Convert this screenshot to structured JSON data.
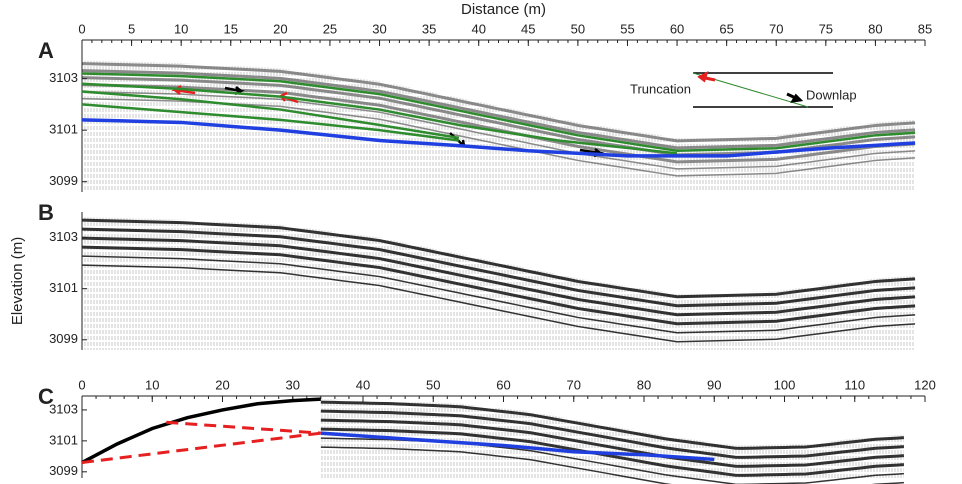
{
  "chart_data": [
    {
      "type": "line",
      "label": "A",
      "xlabel": "Distance (m)",
      "xlim": [
        0,
        85
      ],
      "xticks": [
        0,
        5,
        10,
        15,
        20,
        25,
        30,
        35,
        40,
        45,
        50,
        55,
        60,
        65,
        70,
        75,
        80,
        85
      ],
      "ylim": [
        3098.6,
        3104.5
      ],
      "yticks": [
        3099,
        3101,
        3103
      ],
      "annotations": [
        {
          "text": "Truncation"
        },
        {
          "text": "Downlap"
        }
      ],
      "series": [
        {
          "color": "#2e8b2e",
          "x": [
            0,
            10,
            20,
            30,
            40,
            50,
            60,
            70,
            80,
            84
          ],
          "values": [
            3103.2,
            3103.1,
            3102.9,
            3102.4,
            3101.6,
            3100.8,
            3100.2,
            3100.3,
            3100.8,
            3100.9
          ]
        },
        {
          "color": "#2e8b2e",
          "x": [
            0,
            10,
            20,
            30,
            38,
            48,
            60
          ],
          "values": [
            3102.8,
            3102.6,
            3102.3,
            3101.8,
            3101.2,
            3100.6,
            3100.1
          ]
        },
        {
          "color": "#2e8b2e",
          "x": [
            0,
            10,
            20,
            30,
            38
          ],
          "values": [
            3102.5,
            3102.2,
            3101.8,
            3101.2,
            3100.7
          ]
        },
        {
          "color": "#2e8b2e",
          "x": [
            0,
            10,
            20,
            30,
            38
          ],
          "values": [
            3102.0,
            3101.7,
            3101.4,
            3101.0,
            3100.6
          ]
        },
        {
          "color": "#1f3fe0",
          "x": [
            0,
            10,
            20,
            30,
            38,
            45,
            55,
            65,
            75,
            84
          ],
          "values": [
            3101.4,
            3101.3,
            3101.0,
            3100.6,
            3100.4,
            3100.2,
            3100.0,
            3100.0,
            3100.3,
            3100.5
          ]
        }
      ]
    },
    {
      "type": "line",
      "label": "B",
      "ylabel": "Elevation (m)",
      "xlim": [
        0,
        85
      ],
      "ylim": [
        3098.6,
        3104.0
      ],
      "yticks": [
        3099,
        3101,
        3103
      ],
      "series": []
    },
    {
      "type": "line",
      "label": "C",
      "xlim": [
        0,
        120
      ],
      "xticks": [
        0,
        10,
        20,
        30,
        40,
        50,
        60,
        70,
        80,
        90,
        100,
        110,
        120
      ],
      "ylim": [
        3098.6,
        3103.9
      ],
      "yticks": [
        3099,
        3101,
        3103
      ],
      "series": [
        {
          "color": "#000000",
          "x": [
            0,
            5,
            10,
            15,
            20,
            25,
            30,
            34
          ],
          "values": [
            3099.6,
            3100.8,
            3101.8,
            3102.5,
            3103.0,
            3103.4,
            3103.6,
            3103.7
          ]
        },
        {
          "color": "#e62020",
          "dashed": true,
          "x": [
            0,
            34
          ],
          "values": [
            3099.6,
            3101.5
          ]
        },
        {
          "color": "#e62020",
          "dashed": true,
          "x": [
            12,
            34
          ],
          "values": [
            3102.2,
            3101.5
          ]
        },
        {
          "color": "#1f3fe0",
          "x": [
            34,
            50,
            60,
            70,
            80,
            90
          ],
          "values": [
            3101.5,
            3101.0,
            3100.7,
            3100.3,
            3100.1,
            3099.8
          ]
        }
      ]
    }
  ]
}
